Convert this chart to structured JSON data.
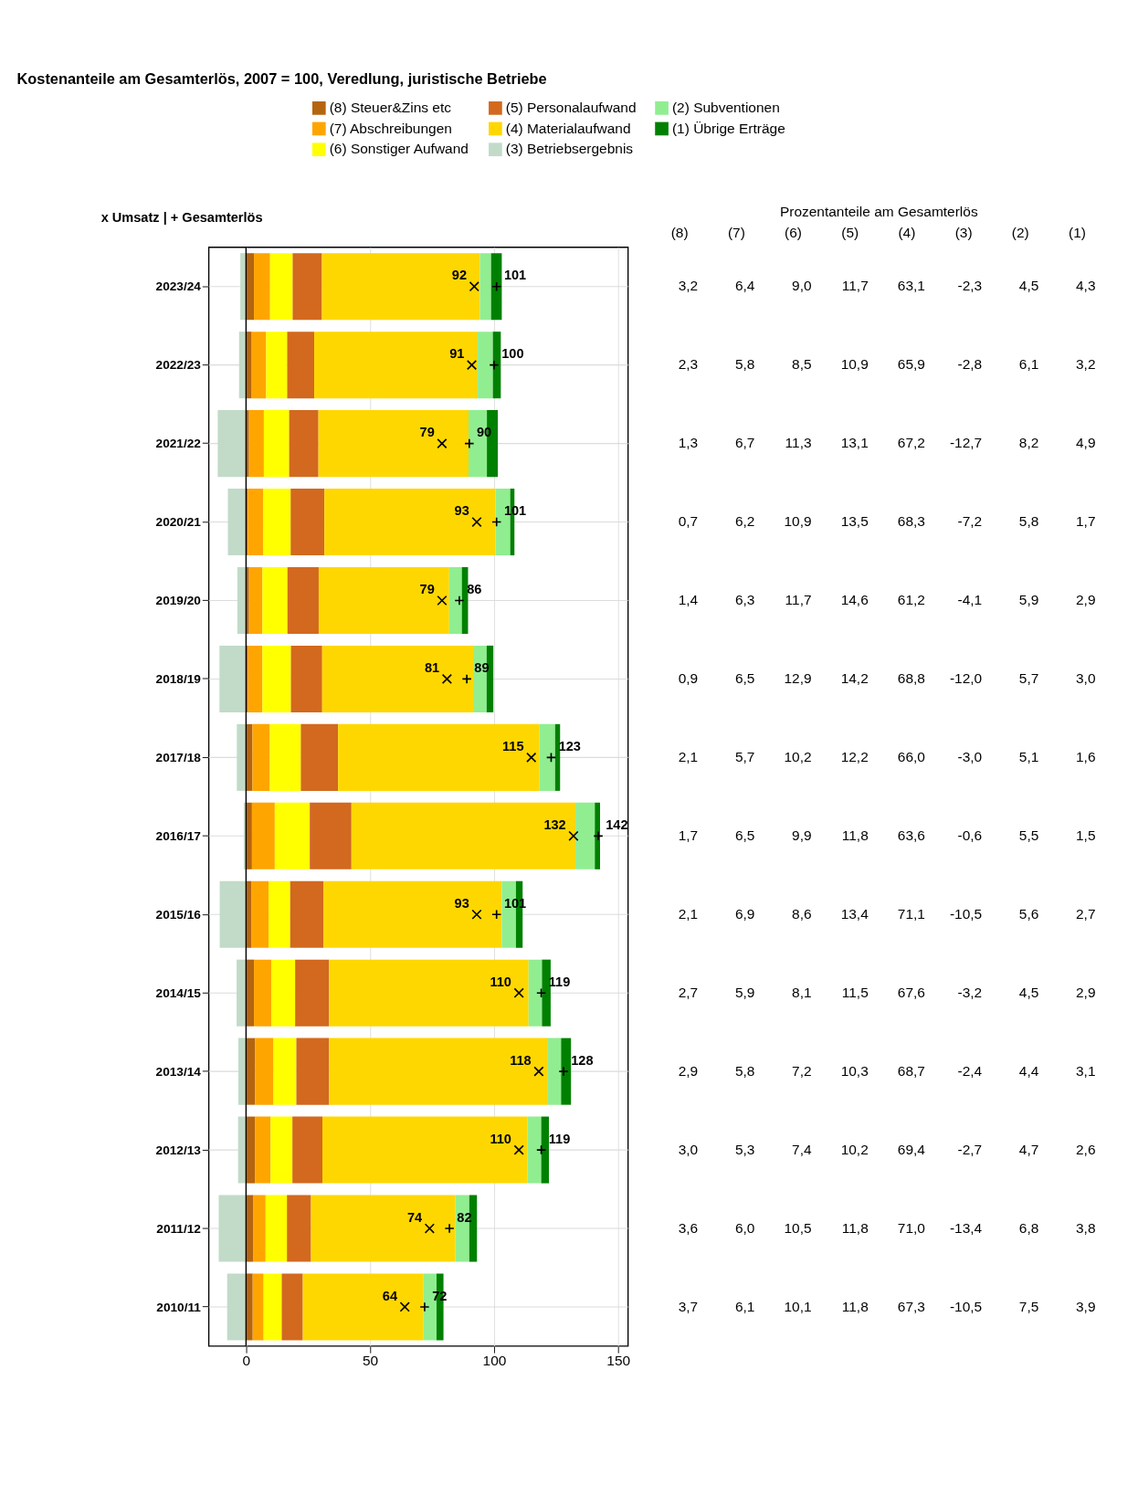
{
  "chart_data": [
    {
      "type": "bar",
      "orientation": "horizontal",
      "stacked": true,
      "title": "Kostenanteile am Gesamterlös, 2007 = 100, Veredlung, juristische Betriebe",
      "ylabel": "x Umsatz | + Gesamterlös",
      "categories": [
        "2023/24",
        "2022/23",
        "2021/22",
        "2020/21",
        "2019/20",
        "2018/19",
        "2017/18",
        "2016/17",
        "2015/16",
        "2014/15",
        "2013/14",
        "2012/13",
        "2011/12",
        "2010/11"
      ],
      "xlim": [
        -15,
        154
      ],
      "xticks": [
        0,
        50,
        100,
        150
      ],
      "grid": true,
      "legend": "top",
      "ref_lines": [
        {
          "axis": "x",
          "value": 0,
          "color": "#000000"
        }
      ],
      "series": [
        {
          "name": "(8) Steuer&Zins etc",
          "color": "#b5650f",
          "values": [
            3.2,
            2.3,
            1.2,
            0.7,
            1.2,
            0.8,
            2.6,
            2.4,
            2.1,
            3.2,
            3.7,
            3.6,
            3.0,
            2.7
          ]
        },
        {
          "name": "(7) Abschreibungen",
          "color": "#ffa500",
          "values": [
            6.5,
            5.8,
            6.0,
            6.3,
            5.4,
            5.8,
            7.0,
            9.2,
            7.0,
            7.0,
            7.4,
            6.3,
            4.9,
            4.4
          ]
        },
        {
          "name": "(6) Sonstiger Aufwand",
          "color": "#ffff00",
          "values": [
            9.1,
            8.5,
            10.2,
            11.0,
            10.1,
            11.5,
            12.5,
            14.1,
            8.7,
            9.6,
            9.2,
            8.8,
            8.6,
            7.3
          ]
        },
        {
          "name": "(5) Personalaufwand",
          "color": "#d2691e",
          "values": [
            11.8,
            10.9,
            11.8,
            13.6,
            12.6,
            12.6,
            15.0,
            16.8,
            13.5,
            13.7,
            13.2,
            12.1,
            9.7,
            8.5
          ]
        },
        {
          "name": "(4) Materialaufwand",
          "color": "#ffd700",
          "values": [
            63.7,
            65.9,
            60.5,
            69.0,
            52.6,
            61.2,
            81.2,
            90.3,
            71.8,
            80.4,
            87.9,
            82.6,
            58.2,
            48.5
          ]
        },
        {
          "name": "(3) Betriebsergebnis",
          "color": "#c1dbc8",
          "values": [
            -2.3,
            -2.8,
            -11.4,
            -7.3,
            -3.5,
            -10.7,
            -3.7,
            -0.9,
            -10.6,
            -3.8,
            -3.1,
            -3.2,
            -11.0,
            -7.6
          ]
        },
        {
          "name": "(2) Subventionen",
          "color": "#90ee90",
          "values": [
            4.5,
            6.1,
            7.4,
            5.9,
            5.1,
            5.1,
            6.3,
            7.8,
            5.7,
            5.4,
            5.6,
            5.6,
            5.6,
            5.4
          ]
        },
        {
          "name": "(1) Übrige Erträge",
          "color": "#008000",
          "values": [
            4.3,
            3.2,
            4.4,
            1.7,
            2.5,
            2.7,
            2.0,
            2.1,
            2.7,
            3.5,
            4.0,
            3.1,
            3.1,
            2.8
          ]
        },
        {
          "type": "scatter",
          "marker": "cross",
          "color": "#000000",
          "values": [
            92,
            91,
            79,
            93,
            79,
            81,
            115,
            132,
            93,
            110,
            118,
            110,
            74,
            64
          ],
          "value_labels": [
            "92",
            "91",
            "79",
            "93",
            "79",
            "81",
            "115",
            "132",
            "93",
            "110",
            "118",
            "110",
            "74",
            "64"
          ]
        },
        {
          "type": "scatter",
          "marker": "plus",
          "color": "#000000",
          "values": [
            101,
            100,
            90,
            101,
            86,
            89,
            123,
            142,
            101,
            119,
            128,
            119,
            82,
            72
          ],
          "value_labels": [
            "101",
            "100",
            "90",
            "101",
            "86",
            "89",
            "123",
            "142",
            "101",
            "119",
            "128",
            "119",
            "82",
            "72"
          ]
        }
      ]
    },
    {
      "type": "heatmap",
      "title": "Prozentanteile am Gesamterlös",
      "tick_labels": "x",
      "categories": [
        "(8)",
        "(7)",
        "(6)",
        "(5)",
        "(4)",
        "(3)",
        "(2)",
        "(1)"
      ],
      "y_categories": [
        "2023/24",
        "2022/23",
        "2021/22",
        "2020/21",
        "2019/20",
        "2018/19",
        "2017/18",
        "2016/17",
        "2015/16",
        "2014/15",
        "2013/14",
        "2012/13",
        "2011/12",
        "2010/11"
      ],
      "cells": [
        [
          3.2,
          6.4,
          9.0,
          11.7,
          63.1,
          -2.3,
          4.5,
          4.3
        ],
        [
          2.3,
          5.8,
          8.5,
          10.9,
          65.9,
          -2.8,
          6.1,
          3.2
        ],
        [
          1.3,
          6.7,
          11.3,
          13.1,
          67.2,
          -12.7,
          8.2,
          4.9
        ],
        [
          0.7,
          6.2,
          10.9,
          13.5,
          68.3,
          -7.2,
          5.8,
          1.7
        ],
        [
          1.4,
          6.3,
          11.7,
          14.6,
          61.2,
          -4.1,
          5.9,
          2.9
        ],
        [
          0.9,
          6.5,
          12.9,
          14.2,
          68.8,
          -12.0,
          5.7,
          3.0
        ],
        [
          2.1,
          5.7,
          10.2,
          12.2,
          66.0,
          -3.0,
          5.1,
          1.6
        ],
        [
          1.7,
          6.5,
          9.9,
          11.8,
          63.6,
          -0.6,
          5.5,
          1.5
        ],
        [
          2.1,
          6.9,
          8.6,
          13.4,
          71.1,
          -10.5,
          5.6,
          2.7
        ],
        [
          2.7,
          5.9,
          8.1,
          11.5,
          67.6,
          -3.2,
          4.5,
          2.9
        ],
        [
          2.9,
          5.8,
          7.2,
          10.3,
          68.7,
          -2.4,
          4.4,
          3.1
        ],
        [
          3.0,
          5.3,
          7.4,
          10.2,
          69.4,
          -2.7,
          4.7,
          2.6
        ],
        [
          3.6,
          6.0,
          10.5,
          11.8,
          71.0,
          -13.4,
          6.8,
          3.8
        ],
        [
          3.7,
          6.1,
          10.1,
          11.8,
          67.3,
          -10.5,
          7.5,
          3.9
        ]
      ],
      "cell_labels": [
        [
          "3,2",
          "6,4",
          "9,0",
          "11,7",
          "63,1",
          "-2,3",
          "4,5",
          "4,3"
        ],
        [
          "2,3",
          "5,8",
          "8,5",
          "10,9",
          "65,9",
          "-2,8",
          "6,1",
          "3,2"
        ],
        [
          "1,3",
          "6,7",
          "11,3",
          "13,1",
          "67,2",
          "-12,7",
          "8,2",
          "4,9"
        ],
        [
          "0,7",
          "6,2",
          "10,9",
          "13,5",
          "68,3",
          "-7,2",
          "5,8",
          "1,7"
        ],
        [
          "1,4",
          "6,3",
          "11,7",
          "14,6",
          "61,2",
          "-4,1",
          "5,9",
          "2,9"
        ],
        [
          "0,9",
          "6,5",
          "12,9",
          "14,2",
          "68,8",
          "-12,0",
          "5,7",
          "3,0"
        ],
        [
          "2,1",
          "5,7",
          "10,2",
          "12,2",
          "66,0",
          "-3,0",
          "5,1",
          "1,6"
        ],
        [
          "1,7",
          "6,5",
          "9,9",
          "11,8",
          "63,6",
          "-0,6",
          "5,5",
          "1,5"
        ],
        [
          "2,1",
          "6,9",
          "8,6",
          "13,4",
          "71,1",
          "-10,5",
          "5,6",
          "2,7"
        ],
        [
          "2,7",
          "5,9",
          "8,1",
          "11,5",
          "67,6",
          "-3,2",
          "4,5",
          "2,9"
        ],
        [
          "2,9",
          "5,8",
          "7,2",
          "10,3",
          "68,7",
          "-2,4",
          "4,4",
          "3,1"
        ],
        [
          "3,0",
          "5,3",
          "7,4",
          "10,2",
          "69,4",
          "-2,7",
          "4,7",
          "2,6"
        ],
        [
          "3,6",
          "6,0",
          "10,5",
          "11,8",
          "71,0",
          "-13,4",
          "6,8",
          "3,8"
        ],
        [
          "3,7",
          "6,1",
          "10,1",
          "11,8",
          "67,3",
          "-10,5",
          "7,5",
          "3,9"
        ]
      ]
    }
  ]
}
